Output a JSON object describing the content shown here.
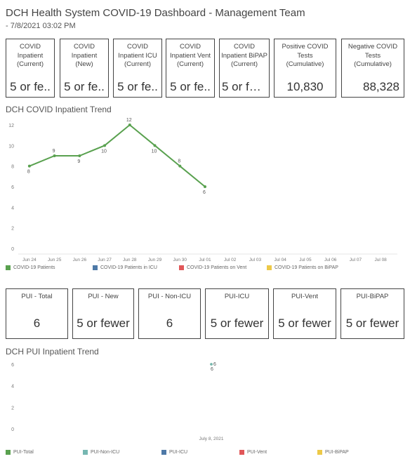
{
  "header": {
    "title": "DCH Health System COVID-19 Dashboard - Management Team",
    "subtitle": "- 7/8/2021 03:02 PM"
  },
  "kpi_top": [
    {
      "label": "COVID\nInpatient\n(Current)",
      "value": "5 or fe.."
    },
    {
      "label": "COVID\nInpatient\n(New)",
      "value": "5 or fe.."
    },
    {
      "label": "COVID\nInpatient ICU\n(Current)",
      "value": "5 or fe.."
    },
    {
      "label": "COVID\nInpatient Vent\n(Current)",
      "value": "5 or fe.."
    },
    {
      "label": "COVID\nInpatient BiPAP\n(Current)",
      "value": "5 or few.."
    },
    {
      "label": "Positive COVID\nTests\n(Cumulative)",
      "value": "10,830"
    },
    {
      "label": "Negative COVID\nTests\n(Cumulative)",
      "value": "88,328"
    }
  ],
  "trend1": {
    "title": "DCH COVID Inpatient Trend",
    "legend": [
      {
        "label": "COVID-19 Patients",
        "color": "#59a14f"
      },
      {
        "label": "COVID-19 Patients in ICU",
        "color": "#4e79a7"
      },
      {
        "label": "COVID-19 Patients on Vent",
        "color": "#e15759"
      },
      {
        "label": "COVID-19 Patients on BiPAP",
        "color": "#edc948"
      }
    ]
  },
  "kpi_pui": [
    {
      "label": "PUI - Total",
      "value": "6"
    },
    {
      "label": "PUI - New",
      "value": "5 or fewer"
    },
    {
      "label": "PUI - Non-ICU",
      "value": "6"
    },
    {
      "label": "PUI-ICU",
      "value": "5 or fewer"
    },
    {
      "label": "PUI-Vent",
      "value": "5 or fewer"
    },
    {
      "label": "PUI-BiPAP",
      "value": "5 or fewer"
    }
  ],
  "trend2": {
    "title": "DCH PUI Inpatient Trend",
    "legend": [
      {
        "label": "PUI-Total",
        "color": "#59a14f"
      },
      {
        "label": "PUI-Non-ICU",
        "color": "#76b7b2"
      },
      {
        "label": "PUI-ICU",
        "color": "#4e79a7"
      },
      {
        "label": "PUI-Vent",
        "color": "#e15759"
      },
      {
        "label": "PUI-BiPAP",
        "color": "#edc948"
      }
    ]
  },
  "chart_data": [
    {
      "type": "line",
      "title": "DCH COVID Inpatient Trend",
      "xlabel": "",
      "ylabel": "",
      "ylim": [
        0,
        12
      ],
      "yticks": [
        0,
        2,
        4,
        6,
        8,
        10,
        12
      ],
      "categories": [
        "Jun 24",
        "Jun 25",
        "Jun 26",
        "Jun 27",
        "Jun 28",
        "Jun 29",
        "Jun 30",
        "Jul 01",
        "Jul 02",
        "Jul 03",
        "Jul 04",
        "Jul 05",
        "Jul 06",
        "Jul 07",
        "Jul 08"
      ],
      "series": [
        {
          "name": "COVID-19 Patients",
          "color": "#59a14f",
          "values": [
            8,
            9,
            9,
            10,
            12,
            10,
            8,
            6,
            null,
            null,
            null,
            null,
            null,
            null,
            null
          ]
        }
      ],
      "legend": "bottom",
      "grid": false
    },
    {
      "type": "scatter",
      "title": "DCH PUI Inpatient Trend",
      "xlabel": "",
      "ylabel": "",
      "ylim": [
        0,
        6
      ],
      "yticks": [
        0,
        2,
        4,
        6
      ],
      "categories": [
        "July 8, 2021"
      ],
      "series": [
        {
          "name": "PUI-Total",
          "color": "#59a14f",
          "values": [
            6
          ]
        },
        {
          "name": "PUI-Non-ICU",
          "color": "#76b7b2",
          "values": [
            6
          ]
        }
      ],
      "legend": "bottom",
      "grid": false
    }
  ]
}
